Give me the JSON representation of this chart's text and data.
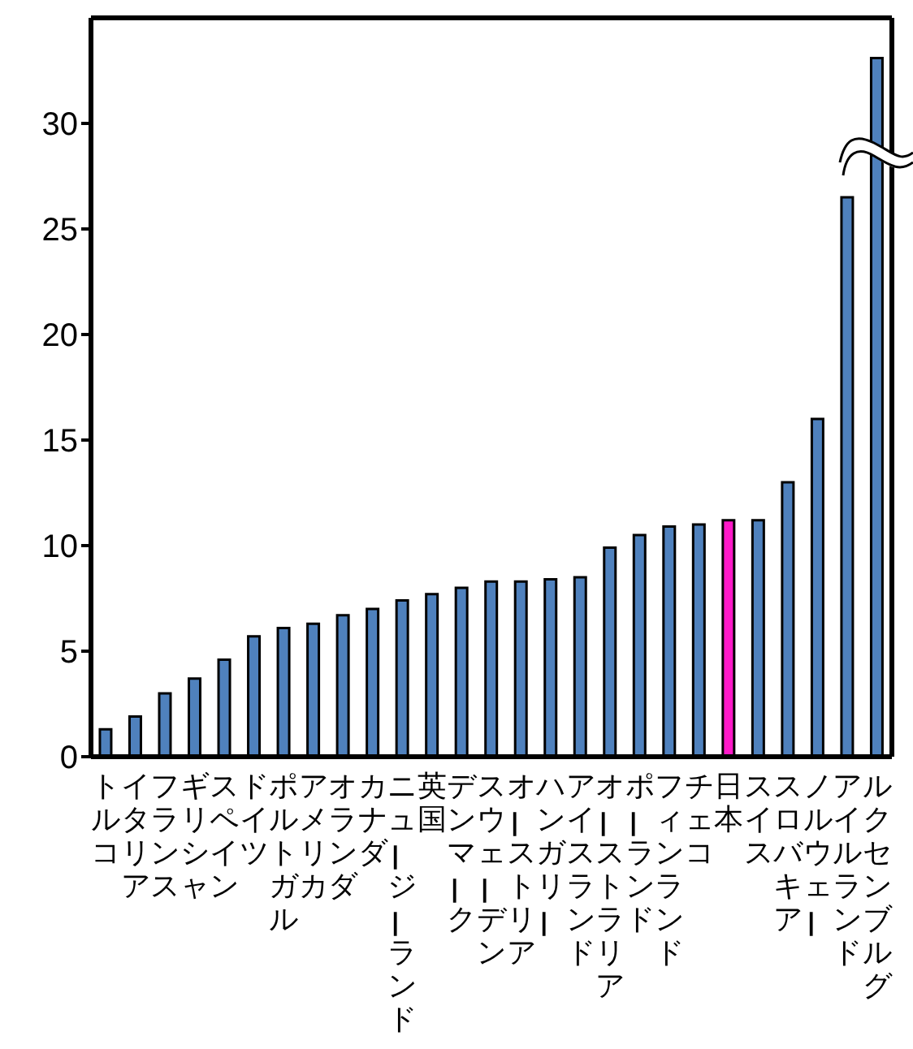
{
  "chart_data": {
    "type": "bar",
    "categories": [
      "トルコ",
      "イタリア",
      "フランス",
      "ギリシャ",
      "スペイン",
      "ドイツ",
      "ポルトガル",
      "アメリカ",
      "オランダ",
      "カナダ",
      "ニュージーランド",
      "英国",
      "デンマーク",
      "スウェーデン",
      "オーストリア",
      "ハンガリー",
      "アイスランド",
      "オーストラリア",
      "ポーランド",
      "フィンランド",
      "チェコ",
      "日本",
      "スイス",
      "スロバキア",
      "ノルウェー",
      "アイルランド",
      "ルクセンブルグ"
    ],
    "values": [
      1.3,
      1.9,
      3.0,
      3.7,
      4.6,
      5.7,
      6.1,
      6.3,
      6.7,
      7.0,
      7.4,
      7.7,
      8.0,
      8.3,
      8.3,
      8.4,
      8.5,
      9.9,
      10.5,
      10.9,
      11.0,
      11.2,
      11.2,
      13.0,
      16.0,
      26.5,
      33.1
    ],
    "colors": [
      "#4f81bd",
      "#4f81bd",
      "#4f81bd",
      "#4f81bd",
      "#4f81bd",
      "#4f81bd",
      "#4f81bd",
      "#4f81bd",
      "#4f81bd",
      "#4f81bd",
      "#4f81bd",
      "#4f81bd",
      "#4f81bd",
      "#4f81bd",
      "#4f81bd",
      "#4f81bd",
      "#4f81bd",
      "#4f81bd",
      "#4f81bd",
      "#4f81bd",
      "#4f81bd",
      "#ff19c8",
      "#4f81bd",
      "#4f81bd",
      "#4f81bd",
      "#4f81bd",
      "#4f81bd"
    ],
    "ylim": [
      0,
      35
    ],
    "yticks": [
      0,
      5,
      10,
      15,
      20,
      25,
      30
    ],
    "grid": false,
    "legend": false
  }
}
